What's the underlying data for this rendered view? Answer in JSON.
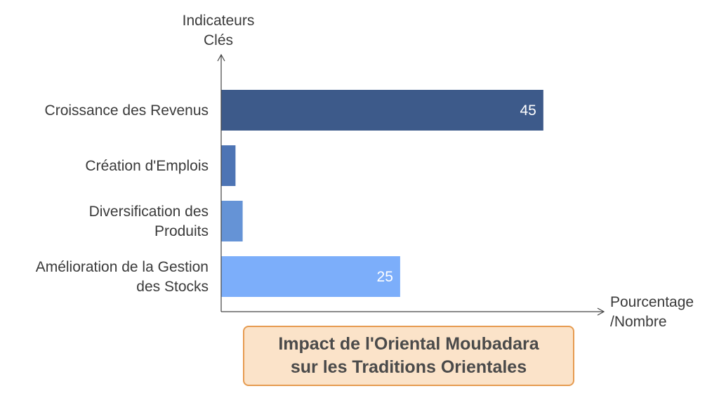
{
  "chart_data": {
    "type": "bar",
    "orientation": "horizontal",
    "categories": [
      [
        "Croissance des Revenus"
      ],
      [
        "Création d'Emplois"
      ],
      [
        "Diversification des",
        "Produits"
      ],
      [
        "Amélioration de la Gestion",
        "des Stocks"
      ]
    ],
    "values": [
      45,
      2,
      3,
      25
    ],
    "value_labels": [
      "45",
      "",
      "",
      "25"
    ],
    "colors": [
      "#3d5a8a",
      "#4d74b4",
      "#6593d6",
      "#7caefa"
    ],
    "ylabel": [
      "Indicateurs",
      "Clés"
    ],
    "xlabel": [
      "Pourcentage",
      "/Nombre"
    ],
    "xlim": [
      0,
      51
    ]
  },
  "title": {
    "line1": "Impact de l'Oriental Moubadara",
    "line2": "sur les Traditions Orientales"
  }
}
